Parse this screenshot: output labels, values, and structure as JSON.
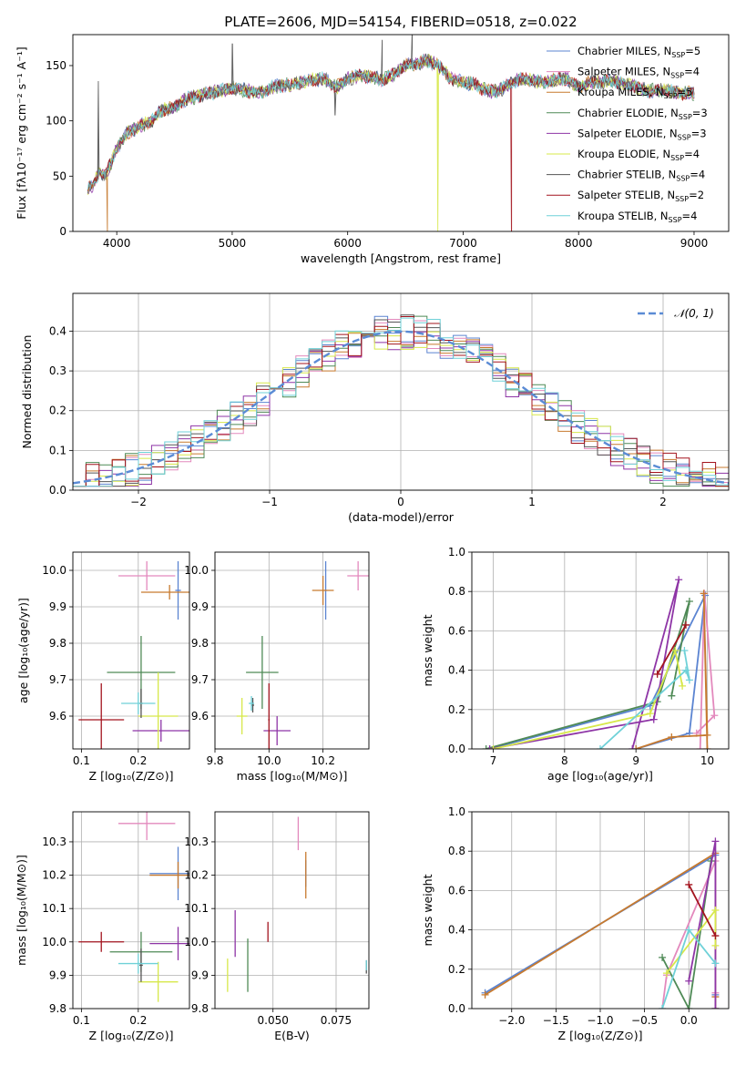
{
  "figure": {
    "title": "PLATE=2606, MJD=54154, FIBERID=0518, z=0.022"
  },
  "models": [
    {
      "name": "Chabrier MILES",
      "nssp": "5",
      "color": "#5b84d1"
    },
    {
      "name": "Salpeter MILES",
      "nssp": "4",
      "color": "#e389bd"
    },
    {
      "name": "Kroupa MILES",
      "nssp": "5",
      "color": "#c77a2f"
    },
    {
      "name": "Chabrier ELODIE",
      "nssp": "3",
      "color": "#4f8a56"
    },
    {
      "name": "Salpeter ELODIE",
      "nssp": "3",
      "color": "#8e35a6"
    },
    {
      "name": "Kroupa ELODIE",
      "nssp": "4",
      "color": "#d7e84a"
    },
    {
      "name": "Chabrier STELIB",
      "nssp": "4",
      "color": "#555555"
    },
    {
      "name": "Salpeter STELIB",
      "nssp": "2",
      "color": "#a3141e"
    },
    {
      "name": "Kroupa STELIB",
      "nssp": "4",
      "color": "#6fd1d8"
    }
  ],
  "chart_data": [
    {
      "id": "spectrum",
      "type": "line",
      "xlabel": "wavelength [Angstrom, rest frame]",
      "ylabel": "Flux [fλ10⁻¹⁷ erg cm⁻² s⁻¹ A⁻¹]",
      "xlim": [
        3620,
        9300
      ],
      "ylim": [
        0,
        178
      ],
      "xticks": [
        4000,
        5000,
        6000,
        7000,
        8000,
        9000
      ],
      "yticks": [
        0,
        50,
        100,
        150
      ],
      "legend": "right",
      "continuum": [
        [
          3750,
          40
        ],
        [
          3800,
          42
        ],
        [
          3850,
          55
        ],
        [
          3900,
          50
        ],
        [
          3950,
          62
        ],
        [
          4000,
          75
        ],
        [
          4100,
          90
        ],
        [
          4200,
          95
        ],
        [
          4300,
          100
        ],
        [
          4400,
          110
        ],
        [
          4500,
          112
        ],
        [
          4600,
          120
        ],
        [
          4700,
          122
        ],
        [
          4800,
          125
        ],
        [
          4900,
          127
        ],
        [
          5000,
          130
        ],
        [
          5100,
          128
        ],
        [
          5200,
          125
        ],
        [
          5300,
          128
        ],
        [
          5400,
          132
        ],
        [
          5500,
          133
        ],
        [
          5600,
          135
        ],
        [
          5700,
          137
        ],
        [
          5800,
          138
        ],
        [
          5900,
          130
        ],
        [
          6000,
          138
        ],
        [
          6100,
          141
        ],
        [
          6200,
          140
        ],
        [
          6300,
          137
        ],
        [
          6400,
          142
        ],
        [
          6500,
          150
        ],
        [
          6600,
          152
        ],
        [
          6700,
          155
        ],
        [
          6800,
          148
        ],
        [
          6900,
          138
        ],
        [
          7000,
          135
        ],
        [
          7100,
          133
        ],
        [
          7200,
          127
        ],
        [
          7300,
          127
        ],
        [
          7400,
          133
        ],
        [
          7500,
          138
        ],
        [
          7600,
          136
        ],
        [
          7700,
          135
        ],
        [
          7800,
          137
        ],
        [
          7900,
          138
        ],
        [
          8000,
          130
        ],
        [
          8100,
          135
        ],
        [
          8200,
          135
        ],
        [
          8300,
          136
        ],
        [
          8400,
          133
        ],
        [
          8500,
          131
        ],
        [
          8600,
          127
        ],
        [
          8700,
          128
        ],
        [
          8800,
          127
        ],
        [
          8900,
          125
        ],
        [
          9000,
          125
        ]
      ],
      "features": [
        {
          "model": "Chabrier STELIB",
          "x": 3840,
          "y": 136
        },
        {
          "model": "Kroupa MILES",
          "x": 3920,
          "y": 0
        },
        {
          "model": "Chabrier STELIB",
          "x": 5000,
          "y": 170
        },
        {
          "model": "Chabrier STELIB",
          "x": 5890,
          "y": 105
        },
        {
          "model": "Chabrier STELIB",
          "x": 6300,
          "y": 173
        },
        {
          "model": "Chabrier STELIB",
          "x": 6560,
          "y": 178
        },
        {
          "model": "Kroupa ELODIE",
          "x": 6780,
          "y": 0
        },
        {
          "model": "Salpeter STELIB",
          "x": 7420,
          "y": 0
        }
      ]
    },
    {
      "id": "residuals",
      "type": "histogram",
      "xlabel": "(data-model)/error",
      "ylabel": "Normed distribution",
      "xlim": [
        -2.5,
        2.5
      ],
      "ylim": [
        0,
        0.495
      ],
      "xticks": [
        -2,
        -1,
        0,
        1,
        2
      ],
      "yticks": [
        0.0,
        0.1,
        0.2,
        0.3,
        0.4
      ],
      "legend": "top-right",
      "reference_curve": {
        "label": "𝒩(0, 1)",
        "mean": 0,
        "sigma": 1
      }
    },
    {
      "id": "age-vs-Z",
      "type": "scatter",
      "xlabel": "Z [log₁₀(Z/Z⊙)]",
      "ylabel": "age  [log₁₀(age/yr)]",
      "xlim": [
        0.085,
        0.29
      ],
      "ylim": [
        9.51,
        10.05
      ],
      "xticks": [
        0.1,
        0.2
      ],
      "yticks": [
        9.6,
        9.7,
        9.8,
        9.9,
        10.0
      ],
      "points": [
        {
          "model": "Chabrier MILES",
          "x": 0.27,
          "y": 9.945,
          "xerr": 0.005,
          "yerr": 0.08
        },
        {
          "model": "Salpeter MILES",
          "x": 0.215,
          "y": 9.985,
          "xerr": 0.05,
          "yerr": 0.04
        },
        {
          "model": "Kroupa MILES",
          "x": 0.255,
          "y": 9.94,
          "xerr": 0.05,
          "yerr": 0.02
        },
        {
          "model": "Chabrier ELODIE",
          "x": 0.205,
          "y": 9.72,
          "xerr": 0.06,
          "yerr": 0.1
        },
        {
          "model": "Salpeter ELODIE",
          "x": 0.24,
          "y": 9.56,
          "xerr": 0.05,
          "yerr": 0.03
        },
        {
          "model": "Kroupa ELODIE",
          "x": 0.235,
          "y": 9.6,
          "xerr": 0.035,
          "yerr": 0.12
        },
        {
          "model": "Chabrier STELIB",
          "x": 0.205,
          "y": 9.635,
          "xerr": 0.003,
          "yerr": 0.04
        },
        {
          "model": "Salpeter STELIB",
          "x": 0.135,
          "y": 9.59,
          "xerr": 0.04,
          "yerr": 0.1
        },
        {
          "model": "Kroupa STELIB",
          "x": 0.2,
          "y": 9.635,
          "xerr": 0.03,
          "yerr": 0.03
        }
      ]
    },
    {
      "id": "age-vs-mass",
      "type": "scatter",
      "xlabel": "mass [log₁₀(M/M⊙)]",
      "ylabel": "",
      "xlim": [
        9.8,
        10.37
      ],
      "ylim": [
        9.51,
        10.05
      ],
      "xticks": [
        9.8,
        10.0,
        10.2
      ],
      "yticks": [
        9.6,
        9.7,
        9.8,
        9.9,
        10.0
      ],
      "points": [
        {
          "model": "Chabrier MILES",
          "x": 10.21,
          "y": 9.945,
          "xerr": 0.003,
          "yerr": 0.08
        },
        {
          "model": "Salpeter MILES",
          "x": 10.33,
          "y": 9.985,
          "xerr": 0.04,
          "yerr": 0.04
        },
        {
          "model": "Kroupa MILES",
          "x": 10.2,
          "y": 9.945,
          "xerr": 0.04,
          "yerr": 0.04
        },
        {
          "model": "Chabrier ELODIE",
          "x": 9.975,
          "y": 9.72,
          "xerr": 0.06,
          "yerr": 0.1
        },
        {
          "model": "Salpeter ELODIE",
          "x": 10.03,
          "y": 9.56,
          "xerr": 0.05,
          "yerr": 0.04
        },
        {
          "model": "Kroupa ELODIE",
          "x": 9.9,
          "y": 9.6,
          "xerr": 0.02,
          "yerr": 0.05
        },
        {
          "model": "Chabrier STELIB",
          "x": 9.94,
          "y": 9.63,
          "xerr": 0.005,
          "yerr": 0.02
        },
        {
          "model": "Salpeter STELIB",
          "x": 10.0,
          "y": 9.59,
          "xerr": 0.003,
          "yerr": 0.1
        },
        {
          "model": "Kroupa STELIB",
          "x": 9.935,
          "y": 9.635,
          "xerr": 0.01,
          "yerr": 0.02
        }
      ]
    },
    {
      "id": "weight-vs-age",
      "type": "line",
      "xlabel": "age  [log₁₀(age/yr)]",
      "ylabel": "mass weight",
      "xlim": [
        6.7,
        10.3
      ],
      "ylim": [
        0,
        1.0
      ],
      "xticks": [
        7,
        8,
        9,
        10
      ],
      "yticks": [
        0.0,
        0.2,
        0.4,
        0.6,
        0.8,
        1.0
      ],
      "series": [
        {
          "model": "Chabrier MILES",
          "points": [
            [
              9.0,
              0.0
            ],
            [
              9.75,
              0.08
            ],
            [
              9.97,
              0.78
            ],
            [
              9.2,
              0.22
            ],
            [
              6.95,
              0.0
            ]
          ]
        },
        {
          "model": "Salpeter MILES",
          "points": [
            [
              9.85,
              0.08
            ],
            [
              10.1,
              0.17
            ],
            [
              9.96,
              0.79
            ],
            [
              9.9,
              0.0
            ]
          ]
        },
        {
          "model": "Kroupa MILES",
          "points": [
            [
              9.0,
              0.0
            ],
            [
              9.5,
              0.06
            ],
            [
              10.0,
              0.07
            ],
            [
              9.95,
              0.79
            ],
            [
              10.0,
              0.0
            ]
          ]
        },
        {
          "model": "Chabrier ELODIE",
          "points": [
            [
              6.9,
              0.0
            ],
            [
              9.3,
              0.24
            ],
            [
              9.75,
              0.75
            ],
            [
              9.5,
              0.27
            ]
          ]
        },
        {
          "model": "Salpeter ELODIE",
          "points": [
            [
              6.95,
              0.0
            ],
            [
              9.25,
              0.15
            ],
            [
              9.6,
              0.86
            ],
            [
              8.95,
              0.0
            ]
          ]
        },
        {
          "model": "Kroupa ELODIE",
          "points": [
            [
              7.0,
              0.0
            ],
            [
              9.2,
              0.18
            ],
            [
              9.55,
              0.5
            ],
            [
              9.65,
              0.32
            ]
          ]
        },
        {
          "model": "Salpeter STELIB",
          "points": [
            [
              9.3,
              0.38
            ],
            [
              9.7,
              0.63
            ]
          ]
        },
        {
          "model": "Kroupa STELIB",
          "points": [
            [
              8.5,
              0.0
            ],
            [
              9.7,
              0.4
            ],
            [
              9.75,
              0.35
            ],
            [
              9.68,
              0.5
            ]
          ]
        }
      ]
    },
    {
      "id": "mass-vs-Z",
      "type": "scatter",
      "xlabel": "Z [log₁₀(Z/Z⊙)]",
      "ylabel": "mass [log₁₀(M/M⊙)]",
      "xlim": [
        0.085,
        0.29
      ],
      "ylim": [
        9.8,
        10.39
      ],
      "xticks": [
        0.1,
        0.2
      ],
      "yticks": [
        9.8,
        9.9,
        10.0,
        10.1,
        10.2,
        10.3
      ],
      "points": [
        {
          "model": "Chabrier MILES",
          "x": 0.27,
          "y": 10.205,
          "xerr": 0.05,
          "yerr": 0.08
        },
        {
          "model": "Salpeter MILES",
          "x": 0.215,
          "y": 10.355,
          "xerr": 0.05,
          "yerr": 0.05
        },
        {
          "model": "Kroupa MILES",
          "x": 0.27,
          "y": 10.2,
          "xerr": 0.05,
          "yerr": 0.04
        },
        {
          "model": "Chabrier ELODIE",
          "x": 0.205,
          "y": 9.97,
          "xerr": 0.055,
          "yerr": 0.06
        },
        {
          "model": "Salpeter ELODIE",
          "x": 0.27,
          "y": 9.995,
          "xerr": 0.05,
          "yerr": 0.05
        },
        {
          "model": "Kroupa ELODIE",
          "x": 0.235,
          "y": 9.88,
          "xerr": 0.035,
          "yerr": 0.06
        },
        {
          "model": "Chabrier STELIB",
          "x": 0.205,
          "y": 9.93,
          "xerr": 0.003,
          "yerr": 0.05
        },
        {
          "model": "Salpeter STELIB",
          "x": 0.135,
          "y": 10.0,
          "xerr": 0.04,
          "yerr": 0.03
        },
        {
          "model": "Kroupa STELIB",
          "x": 0.2,
          "y": 9.935,
          "xerr": 0.035,
          "yerr": 0.03
        }
      ]
    },
    {
      "id": "mass-vs-EBV",
      "type": "scatter",
      "xlabel": "E(B-V)",
      "ylabel": "",
      "xlim": [
        0.027,
        0.088
      ],
      "ylim": [
        9.8,
        10.39
      ],
      "xticks": [
        0.05,
        0.075
      ],
      "yticks": [
        9.8,
        9.9,
        10.0,
        10.1,
        10.2,
        10.3
      ],
      "points": [
        {
          "model": "Chabrier MILES",
          "x": 0.063,
          "y": 10.205,
          "xerr": 0.0,
          "yerr": 0.04
        },
        {
          "model": "Salpeter MILES",
          "x": 0.06,
          "y": 10.325,
          "xerr": 0.0,
          "yerr": 0.05
        },
        {
          "model": "Kroupa MILES",
          "x": 0.063,
          "y": 10.2,
          "xerr": 0.0,
          "yerr": 0.07
        },
        {
          "model": "Chabrier ELODIE",
          "x": 0.04,
          "y": 9.93,
          "xerr": 0.0,
          "yerr": 0.08
        },
        {
          "model": "Salpeter ELODIE",
          "x": 0.035,
          "y": 10.025,
          "xerr": 0.0,
          "yerr": 0.07
        },
        {
          "model": "Kroupa ELODIE",
          "x": 0.032,
          "y": 9.9,
          "xerr": 0.0,
          "yerr": 0.05
        },
        {
          "model": "Chabrier STELIB",
          "x": 0.087,
          "y": 9.925,
          "xerr": 0.0,
          "yerr": 0.02
        },
        {
          "model": "Salpeter STELIB",
          "x": 0.048,
          "y": 10.03,
          "xerr": 0.0,
          "yerr": 0.03
        },
        {
          "model": "Kroupa STELIB",
          "x": 0.087,
          "y": 9.93,
          "xerr": 0.0,
          "yerr": 0.015
        }
      ]
    },
    {
      "id": "weight-vs-Z",
      "type": "line",
      "xlabel": "Z [log₁₀(Z/Z⊙)]",
      "ylabel": "mass weight",
      "xlim": [
        -2.45,
        0.45
      ],
      "ylim": [
        0,
        1.0
      ],
      "xticks": [
        -2.0,
        -1.5,
        -1.0,
        -0.5,
        0.0
      ],
      "yticks": [
        0.0,
        0.2,
        0.4,
        0.6,
        0.8,
        1.0
      ],
      "series": [
        {
          "model": "Chabrier MILES",
          "points": [
            [
              -2.3,
              0.08
            ],
            [
              0.3,
              0.78
            ],
            [
              0.3,
              0.07
            ],
            [
              0.3,
              0.0
            ]
          ]
        },
        {
          "model": "Kroupa MILES",
          "points": [
            [
              -2.3,
              0.07
            ],
            [
              0.3,
              0.79
            ],
            [
              0.3,
              0.06
            ],
            [
              0.3,
              0.0
            ]
          ]
        },
        {
          "model": "Salpeter MILES",
          "points": [
            [
              -0.3,
              0.0
            ],
            [
              -0.25,
              0.17
            ],
            [
              0.3,
              0.75
            ],
            [
              0.3,
              0.08
            ]
          ]
        },
        {
          "model": "Chabrier ELODIE",
          "points": [
            [
              -0.3,
              0.26
            ],
            [
              0.0,
              0.0
            ],
            [
              0.25,
              0.75
            ]
          ]
        },
        {
          "model": "Salpeter ELODIE",
          "points": [
            [
              0.0,
              0.14
            ],
            [
              0.3,
              0.85
            ],
            [
              0.3,
              0.0
            ]
          ]
        },
        {
          "model": "Kroupa ELODIE",
          "points": [
            [
              -0.25,
              0.18
            ],
            [
              0.3,
              0.5
            ],
            [
              0.3,
              0.32
            ]
          ]
        },
        {
          "model": "Salpeter STELIB",
          "points": [
            [
              0.0,
              0.63
            ],
            [
              0.3,
              0.37
            ]
          ]
        },
        {
          "model": "Kroupa STELIB",
          "points": [
            [
              -0.3,
              0.0
            ],
            [
              0.0,
              0.4
            ],
            [
              0.3,
              0.23
            ]
          ]
        }
      ]
    }
  ]
}
